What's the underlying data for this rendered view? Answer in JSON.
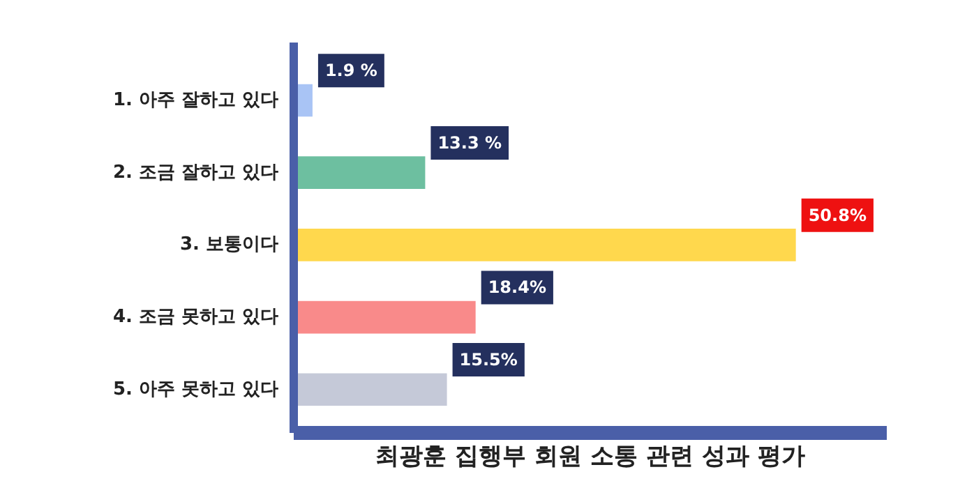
{
  "chart_data": {
    "type": "bar",
    "orientation": "horizontal",
    "title": "최광훈 집행부 회원 소통 관련 성과 평가",
    "categories": [
      "1. 아주 잘하고 있다",
      "2. 조금 잘하고 있다",
      "3. 보통이다",
      "4. 조금 못하고 있다",
      "5. 아주 못하고 있다"
    ],
    "values": [
      1.9,
      13.3,
      50.8,
      18.4,
      15.5
    ],
    "colors": [
      "#a9c4f5",
      "#6dbfa0",
      "#ffd84d",
      "#f98a8a",
      "#c5c9d8"
    ],
    "value_labels": [
      "1.9 %",
      "13.3 %",
      "50.8%",
      "18.4%",
      "15.5%"
    ],
    "xlim": [
      0,
      60
    ],
    "grid": false
  }
}
